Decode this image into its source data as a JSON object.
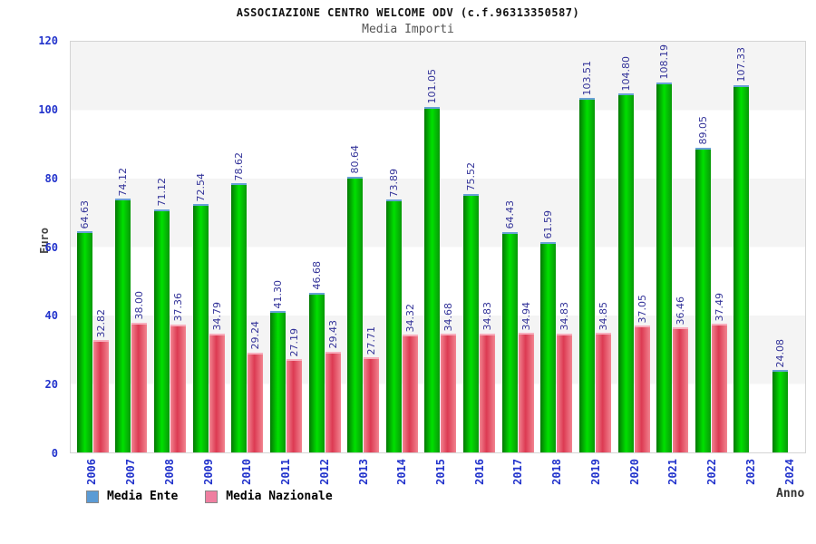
{
  "header": {
    "title": "ASSOCIAZIONE CENTRO WELCOME ODV (c.f.96313350587)",
    "subtitle": "Media Importi"
  },
  "chart_data": {
    "type": "bar",
    "title": "ASSOCIAZIONE CENTRO WELCOME ODV (c.f.96313350587)",
    "subtitle": "Media Importi",
    "xlabel": "Anno",
    "ylabel": "Euro",
    "ylim": [
      0,
      120
    ],
    "yticks": [
      0,
      20,
      40,
      60,
      80,
      100,
      120
    ],
    "grid": "alternating-horizontal-bands",
    "legend_position": "bottom-left",
    "band_color": "#f4f4f4",
    "tick_label_color": "#2233cc",
    "value_label_color": "#333399",
    "categories": [
      "2006",
      "2007",
      "2008",
      "2009",
      "2010",
      "2011",
      "2012",
      "2013",
      "2014",
      "2015",
      "2016",
      "2017",
      "2018",
      "2019",
      "2020",
      "2021",
      "2022",
      "2023",
      "2024"
    ],
    "series": [
      {
        "name": "Media Ente",
        "legend_color": "#5b9bd5",
        "bar_color": "#00cc00",
        "values": [
          64.63,
          74.12,
          71.12,
          72.54,
          78.62,
          41.3,
          46.68,
          80.64,
          73.89,
          101.05,
          75.52,
          64.43,
          61.59,
          103.51,
          104.8,
          108.19,
          89.05,
          107.33,
          24.08
        ]
      },
      {
        "name": "Media Nazionale",
        "legend_color": "#ef7fa0",
        "bar_color": "#dc3a52",
        "values": [
          32.82,
          38.0,
          37.36,
          34.79,
          29.24,
          27.19,
          29.43,
          27.71,
          34.32,
          34.68,
          34.83,
          34.94,
          34.83,
          34.85,
          37.05,
          36.46,
          37.49,
          null,
          null
        ]
      }
    ]
  }
}
